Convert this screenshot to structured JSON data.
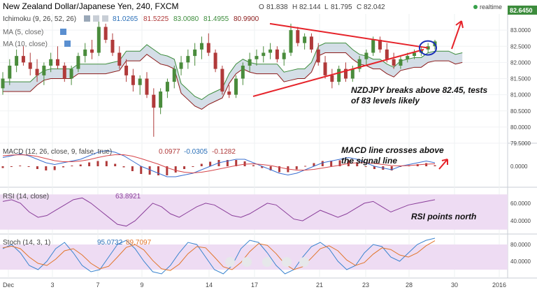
{
  "header": {
    "title": "New Zealand Dollar/Japanese Yen, 240, FXCM",
    "ohlc": [
      {
        "k": "O",
        "v": "81.838"
      },
      {
        "k": "H",
        "v": "82.144"
      },
      {
        "k": "L",
        "v": "81.795"
      },
      {
        "k": "C",
        "v": "82.042"
      }
    ],
    "realtime_label": "realtime",
    "last_price": "82.6450"
  },
  "indicators": {
    "ichimoku": {
      "label": "Ichimoku (9, 26, 52, 26)",
      "values": [
        "81.0265",
        "81.5225",
        "83.0080",
        "81.4955",
        "80.9900"
      ]
    },
    "ma5": {
      "label": "MA (5, close)"
    },
    "ma10": {
      "label": "MA (10, close)"
    },
    "macd": {
      "label": "MACD (12, 26, close, 9, false, true)",
      "values": [
        "0.0977",
        "-0.0305",
        "-0.1282"
      ]
    },
    "rsi": {
      "label": "RSI (14, close)",
      "value": "63.8921"
    },
    "stoch": {
      "label": "Stoch (14, 3, 1)",
      "values": [
        "95.0732",
        "89.7097"
      ]
    }
  },
  "annotations": {
    "main": [
      "NZDJPY breaks above 82.45, tests",
      "of 83 levels likely"
    ],
    "macd": [
      "MACD line crosses above",
      "the signal line"
    ],
    "rsi": "RSI points north"
  },
  "colors": {
    "up": "#4a8c3c",
    "down": "#b03a3a",
    "cloud": "#c6d3df",
    "kijun": "#8b1a1a",
    "chikou": "#3c8c3c",
    "trendline": "#e6232a",
    "macd_line": "#3a6fd0",
    "signal_line": "#d6454a",
    "rsi_line": "#8a3e9a",
    "rsi_band": "#eedcf3",
    "stoch_k": "#3a84cf",
    "stoch_d": "#e1752a"
  },
  "chart_data": [
    {
      "type": "candlestick",
      "name": "NZDJPY 240",
      "ylim": [
        79.5,
        83.5
      ],
      "yticks": [
        "83.0000",
        "82.5000",
        "82.0000",
        "81.5000",
        "81.0000",
        "80.5000",
        "80.0000",
        "79.5000"
      ],
      "candles": [
        [
          81.2,
          81.7,
          81.0,
          81.5
        ],
        [
          81.5,
          82.1,
          81.3,
          81.9
        ],
        [
          81.9,
          82.4,
          81.7,
          82.2
        ],
        [
          82.2,
          82.5,
          81.9,
          82.0
        ],
        [
          82.0,
          82.3,
          81.6,
          81.8
        ],
        [
          81.8,
          82.1,
          81.4,
          81.6
        ],
        [
          81.6,
          82.0,
          81.3,
          81.9
        ],
        [
          81.9,
          82.3,
          81.7,
          82.1
        ],
        [
          82.1,
          82.5,
          81.8,
          81.9
        ],
        [
          81.9,
          82.0,
          81.4,
          81.5
        ],
        [
          81.5,
          81.9,
          81.3,
          81.8
        ],
        [
          81.8,
          82.3,
          81.7,
          82.2
        ],
        [
          82.2,
          82.6,
          82.0,
          82.4
        ],
        [
          82.4,
          82.7,
          82.1,
          82.3
        ],
        [
          82.3,
          83.3,
          82.2,
          83.1
        ],
        [
          83.1,
          83.2,
          82.6,
          82.7
        ],
        [
          82.7,
          82.9,
          82.2,
          82.3
        ],
        [
          82.3,
          82.5,
          81.8,
          81.9
        ],
        [
          81.9,
          82.1,
          81.4,
          81.6
        ],
        [
          81.6,
          81.8,
          81.1,
          81.3
        ],
        [
          81.3,
          81.6,
          81.0,
          81.5
        ],
        [
          81.5,
          81.7,
          80.9,
          81.0
        ],
        [
          81.0,
          81.2,
          79.7,
          80.6
        ],
        [
          80.6,
          81.2,
          80.4,
          81.1
        ],
        [
          81.1,
          81.5,
          80.9,
          81.4
        ],
        [
          81.4,
          81.9,
          81.2,
          81.8
        ],
        [
          81.8,
          82.2,
          81.6,
          82.0
        ],
        [
          82.0,
          82.4,
          81.8,
          82.2
        ],
        [
          82.2,
          82.6,
          81.9,
          82.4
        ],
        [
          82.4,
          82.8,
          82.1,
          82.6
        ],
        [
          82.6,
          82.9,
          82.2,
          82.3
        ],
        [
          82.3,
          82.4,
          81.7,
          81.8
        ],
        [
          81.8,
          81.9,
          81.0,
          81.1
        ],
        [
          81.1,
          81.3,
          80.9,
          81.0
        ],
        [
          81.0,
          81.6,
          80.9,
          81.5
        ],
        [
          81.5,
          82.0,
          81.3,
          81.9
        ],
        [
          81.9,
          82.3,
          81.7,
          82.1
        ],
        [
          82.1,
          82.4,
          81.9,
          82.2
        ],
        [
          82.2,
          82.5,
          82.0,
          82.3
        ],
        [
          82.3,
          82.6,
          82.1,
          82.4
        ],
        [
          82.4,
          82.5,
          82.0,
          82.1
        ],
        [
          82.1,
          82.4,
          81.9,
          82.3
        ],
        [
          82.3,
          83.2,
          82.2,
          83.0
        ],
        [
          83.0,
          83.1,
          82.5,
          82.6
        ],
        [
          82.6,
          82.9,
          82.4,
          82.8
        ],
        [
          82.8,
          82.9,
          82.3,
          82.4
        ],
        [
          82.4,
          82.6,
          81.9,
          82.0
        ],
        [
          82.0,
          82.2,
          81.5,
          81.6
        ],
        [
          81.6,
          81.8,
          81.2,
          81.4
        ],
        [
          81.4,
          81.9,
          81.3,
          81.8
        ],
        [
          81.8,
          82.0,
          81.4,
          81.5
        ],
        [
          81.5,
          81.9,
          81.4,
          81.8
        ],
        [
          81.8,
          82.2,
          81.7,
          82.1
        ],
        [
          82.1,
          82.4,
          81.9,
          82.3
        ],
        [
          82.3,
          82.8,
          82.2,
          82.7
        ],
        [
          82.7,
          82.8,
          82.3,
          82.4
        ],
        [
          82.4,
          82.6,
          82.0,
          82.1
        ],
        [
          82.1,
          82.3,
          81.8,
          81.9
        ],
        [
          81.9,
          82.2,
          81.8,
          82.1
        ],
        [
          82.1,
          82.3,
          82.0,
          82.2
        ],
        [
          82.2,
          82.4,
          82.1,
          82.3
        ],
        [
          82.3,
          82.5,
          82.2,
          82.4
        ],
        [
          82.4,
          82.6,
          82.3,
          82.5
        ],
        [
          82.5,
          82.7,
          82.4,
          82.65
        ]
      ]
    },
    {
      "type": "line",
      "name": "MACD",
      "ylim": [
        -0.6,
        0.6
      ],
      "yticks": [
        "0.0000"
      ],
      "series": [
        {
          "values": [
            0.25,
            0.3,
            0.35,
            0.3,
            0.2,
            0.1,
            0.05,
            0.1,
            0.15,
            0.2,
            0.3,
            0.4,
            0.45,
            0.4,
            0.3,
            0.15,
            0.0,
            -0.1,
            -0.2,
            -0.3,
            -0.3,
            -0.25,
            -0.2,
            -0.1,
            0.0,
            0.1,
            0.15,
            0.2,
            0.2,
            0.1,
            0.0,
            -0.1,
            -0.2,
            -0.25,
            -0.2,
            -0.1,
            0.0,
            0.1,
            0.15,
            0.2,
            0.25,
            0.2,
            0.1,
            0.0,
            -0.05,
            -0.1,
            0.0,
            0.05,
            0.1,
            0.15,
            0.1
          ]
        },
        {
          "values": [
            0.3,
            0.32,
            0.33,
            0.32,
            0.28,
            0.22,
            0.16,
            0.13,
            0.13,
            0.15,
            0.19,
            0.25,
            0.3,
            0.33,
            0.33,
            0.29,
            0.22,
            0.14,
            0.06,
            -0.04,
            -0.12,
            -0.17,
            -0.19,
            -0.17,
            -0.13,
            -0.08,
            -0.03,
            0.02,
            0.06,
            0.07,
            0.05,
            0.02,
            -0.03,
            -0.08,
            -0.11,
            -0.11,
            -0.09,
            -0.05,
            -0.01,
            0.03,
            0.08,
            0.1,
            0.1,
            0.08,
            0.05,
            0.02,
            0.01,
            0.02,
            0.04,
            0.06,
            0.07
          ]
        }
      ],
      "histogram": [
        -0.05,
        -0.02,
        0.02,
        -0.02,
        -0.08,
        -0.12,
        -0.11,
        -0.03,
        0.02,
        0.05,
        0.11,
        0.15,
        0.15,
        0.07,
        -0.03,
        -0.14,
        -0.22,
        -0.24,
        -0.26,
        -0.26,
        -0.18,
        -0.08,
        -0.01,
        0.07,
        0.13,
        0.18,
        0.18,
        0.18,
        0.14,
        0.03,
        -0.05,
        -0.12,
        -0.17,
        -0.17,
        -0.09,
        0.01,
        0.09,
        0.15,
        0.16,
        0.17,
        0.17,
        0.1,
        0.0,
        -0.08,
        -0.1,
        -0.12,
        -0.01,
        0.03,
        0.06,
        0.09,
        0.03
      ]
    },
    {
      "type": "line",
      "name": "RSI",
      "ylim": [
        25,
        75
      ],
      "yticks": [
        "60.0000",
        "40.0000"
      ],
      "band": [
        30,
        70
      ],
      "values": [
        62,
        64,
        60,
        50,
        44,
        46,
        52,
        58,
        64,
        66,
        60,
        52,
        44,
        36,
        34,
        40,
        50,
        60,
        56,
        48,
        44,
        50,
        56,
        60,
        58,
        52,
        46,
        44,
        48,
        54,
        60,
        58,
        50,
        42,
        40,
        46,
        52,
        48,
        44,
        48,
        54,
        60,
        62,
        56,
        50,
        54,
        58,
        60,
        62,
        64
      ]
    },
    {
      "type": "line",
      "name": "Stoch",
      "ylim": [
        0,
        100
      ],
      "yticks": [
        "80.0000",
        "40.0000"
      ],
      "band": [
        20,
        80
      ],
      "series": [
        {
          "values": [
            70,
            80,
            60,
            30,
            20,
            40,
            70,
            85,
            60,
            30,
            15,
            20,
            50,
            80,
            90,
            70,
            40,
            15,
            10,
            30,
            60,
            85,
            80,
            50,
            20,
            10,
            30,
            70,
            90,
            85,
            60,
            30,
            10,
            20,
            50,
            75,
            85,
            70,
            40,
            20,
            30,
            60,
            80,
            75,
            50,
            40,
            60,
            80,
            90,
            95
          ]
        },
        {
          "values": [
            72,
            76,
            70,
            50,
            35,
            30,
            45,
            65,
            70,
            55,
            35,
            22,
            28,
            50,
            73,
            80,
            67,
            42,
            22,
            18,
            33,
            58,
            75,
            72,
            50,
            27,
            20,
            37,
            63,
            82,
            78,
            58,
            33,
            20,
            27,
            48,
            70,
            77,
            65,
            43,
            30,
            37,
            57,
            72,
            68,
            55,
            50,
            60,
            77,
            89
          ]
        }
      ]
    }
  ],
  "xaxis": {
    "labels": [
      "Dec",
      "3",
      "7",
      "9",
      "14",
      "17",
      "21",
      "23",
      "28",
      "30",
      "2016"
    ]
  }
}
